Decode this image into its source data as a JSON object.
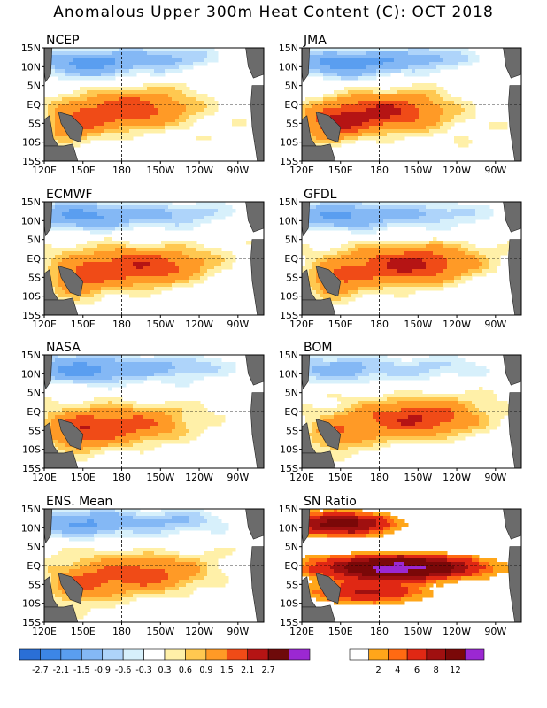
{
  "title": "Anomalous Upper 300m Heat Content (C): OCT 2018",
  "panel_labels": [
    "NCEP",
    "JMA",
    "ECMWF",
    "GFDL",
    "NASA",
    "BOM",
    "ENS. Mean",
    "SN Ratio"
  ],
  "x_ticks": [
    "120E",
    "150E",
    "180",
    "150W",
    "120W",
    "90W"
  ],
  "y_ticks": [
    "15N",
    "10N",
    "5N",
    "EQ",
    "5S",
    "10S",
    "15S"
  ],
  "colorbar_anomaly": {
    "labels": [
      "-2.7",
      "-2.1",
      "-1.5",
      "-0.9",
      "-0.6",
      "-0.3",
      "0.3",
      "0.6",
      "0.9",
      "1.5",
      "2.1",
      "2.7"
    ],
    "colors": [
      "#2a6fd6",
      "#3c86e6",
      "#5a9ef0",
      "#84b8f5",
      "#aed4fa",
      "#d7f0fb",
      "#ffffff",
      "#fff0a8",
      "#ffc850",
      "#ff9a26",
      "#f04b17",
      "#b51414",
      "#6e0a0a",
      "#9b28d2"
    ]
  },
  "colorbar_sn": {
    "labels": [
      "2",
      "4",
      "6",
      "8",
      "12"
    ],
    "colors": [
      "#ffffff",
      "#ffa61a",
      "#ff6a12",
      "#e02814",
      "#a01010",
      "#7a0808",
      "#9b28d2"
    ]
  },
  "chart_data": [
    {
      "type": "heatmap",
      "panel": "NCEP",
      "variable": "upper 300m heat content anomaly",
      "units": "C",
      "xrange": [
        "120E",
        "70W"
      ],
      "yrange": [
        "15S",
        "15N"
      ],
      "features": {
        "equatorial_warm_max": 1.5,
        "northwest_cool_min": -1.5
      }
    },
    {
      "type": "heatmap",
      "panel": "JMA",
      "variable": "upper 300m heat content anomaly",
      "units": "C",
      "xrange": [
        "120E",
        "70W"
      ],
      "yrange": [
        "15S",
        "15N"
      ],
      "features": {
        "equatorial_warm_max": 2.1,
        "northwest_cool_min": -1.5
      }
    },
    {
      "type": "heatmap",
      "panel": "ECMWF",
      "variable": "upper 300m heat content anomaly",
      "units": "C",
      "xrange": [
        "120E",
        "70W"
      ],
      "yrange": [
        "15S",
        "15N"
      ],
      "features": {
        "equatorial_warm_max": 2.1,
        "northwest_cool_min": -1.5
      }
    },
    {
      "type": "heatmap",
      "panel": "GFDL",
      "variable": "upper 300m heat content anomaly",
      "units": "C",
      "xrange": [
        "120E",
        "70W"
      ],
      "yrange": [
        "15S",
        "15N"
      ],
      "features": {
        "equatorial_warm_max": 2.1,
        "northwest_cool_min": -1.5
      }
    },
    {
      "type": "heatmap",
      "panel": "NASA",
      "variable": "upper 300m heat content anomaly",
      "units": "C",
      "xrange": [
        "120E",
        "70W"
      ],
      "yrange": [
        "15S",
        "15N"
      ],
      "features": {
        "equatorial_warm_max": 1.5,
        "northwest_cool_min": -1.5
      }
    },
    {
      "type": "heatmap",
      "panel": "BOM",
      "variable": "upper 300m heat content anomaly",
      "units": "C",
      "xrange": [
        "120E",
        "70W"
      ],
      "yrange": [
        "15S",
        "15N"
      ],
      "features": {
        "equatorial_warm_max": 2.1,
        "northwest_cool_min": -0.9
      }
    },
    {
      "type": "heatmap",
      "panel": "ENS. Mean",
      "variable": "upper 300m heat content anomaly",
      "units": "C",
      "xrange": [
        "120E",
        "70W"
      ],
      "yrange": [
        "15S",
        "15N"
      ],
      "features": {
        "equatorial_warm_max": 1.5,
        "northwest_cool_min": -1.5
      }
    },
    {
      "type": "heatmap",
      "panel": "SN Ratio",
      "variable": "signal-to-noise ratio",
      "xrange": [
        "120E",
        "70W"
      ],
      "yrange": [
        "15S",
        "15N"
      ],
      "features": {
        "equatorial_max": 12
      }
    }
  ]
}
